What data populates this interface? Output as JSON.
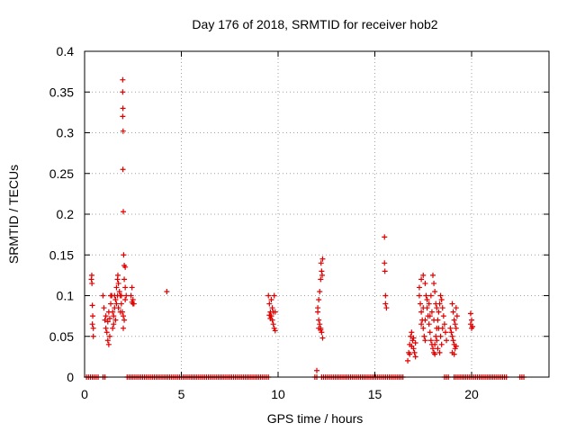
{
  "chart_data": {
    "type": "scatter",
    "title": "Day 176 of 2018, SRMTID for receiver hob2",
    "xlabel": "GPS time / hours",
    "ylabel": "SRMTID / TECUs",
    "xlim": [
      0,
      24
    ],
    "ylim": [
      0,
      0.4
    ],
    "xticks": [
      0,
      5,
      10,
      15,
      20
    ],
    "xtick_labels": [
      "0",
      "5",
      "10",
      "15",
      "20"
    ],
    "yticks": [
      0,
      0.05,
      0.1,
      0.15,
      0.2,
      0.25,
      0.3,
      0.35,
      0.4
    ],
    "ytick_labels": [
      "0",
      "0.05",
      "0.1",
      "0.15",
      "0.2",
      "0.25",
      "0.3",
      "0.35",
      "0.4"
    ],
    "grid": true,
    "marker": "+",
    "color": "#e00000",
    "zero_segments": [
      [
        0.1,
        0.7
      ],
      [
        0.95,
        1.05
      ],
      [
        2.2,
        9.5
      ],
      [
        11.9,
        12.05
      ],
      [
        12.25,
        16.5
      ],
      [
        18.6,
        18.8
      ],
      [
        19.1,
        21.8
      ],
      [
        22.5,
        22.7
      ]
    ],
    "points": [
      [
        0.35,
        0.12
      ],
      [
        0.37,
        0.125
      ],
      [
        0.38,
        0.115
      ],
      [
        0.4,
        0.088
      ],
      [
        0.42,
        0.075
      ],
      [
        0.45,
        0.06
      ],
      [
        0.45,
        0.05
      ],
      [
        0.4,
        0.065
      ],
      [
        0.95,
        0.1
      ],
      [
        1.0,
        0.085
      ],
      [
        1.05,
        0.07
      ],
      [
        1.1,
        0.06
      ],
      [
        1.15,
        0.055
      ],
      [
        1.2,
        0.045
      ],
      [
        1.25,
        0.04
      ],
      [
        1.3,
        0.05
      ],
      [
        1.1,
        0.075
      ],
      [
        1.2,
        0.068
      ],
      [
        1.3,
        0.072
      ],
      [
        1.35,
        0.09
      ],
      [
        1.4,
        0.1
      ],
      [
        1.45,
        0.08
      ],
      [
        1.5,
        0.065
      ],
      [
        1.55,
        0.085
      ],
      [
        1.6,
        0.095
      ],
      [
        1.65,
        0.11
      ],
      [
        1.7,
        0.12
      ],
      [
        1.72,
        0.125
      ],
      [
        1.75,
        0.115
      ],
      [
        1.8,
        0.105
      ],
      [
        1.85,
        0.1
      ],
      [
        1.9,
        0.09
      ],
      [
        1.95,
        0.08
      ],
      [
        2.0,
        0.075
      ],
      [
        2.05,
        0.07
      ],
      [
        2.1,
        0.095
      ],
      [
        2.15,
        0.1
      ],
      [
        1.5,
        0.075
      ],
      [
        1.6,
        0.07
      ],
      [
        1.45,
        0.06
      ],
      [
        1.35,
        0.1
      ],
      [
        1.25,
        0.08
      ],
      [
        1.65,
        0.09
      ],
      [
        1.75,
        0.085
      ],
      [
        1.85,
        0.08
      ],
      [
        1.55,
        0.1
      ],
      [
        1.7,
        0.1
      ],
      [
        1.9,
        0.1
      ],
      [
        1.97,
        0.365
      ],
      [
        1.97,
        0.35
      ],
      [
        1.98,
        0.33
      ],
      [
        1.97,
        0.32
      ],
      [
        1.99,
        0.302
      ],
      [
        1.98,
        0.255
      ],
      [
        2.0,
        0.203
      ],
      [
        2.02,
        0.15
      ],
      [
        2.05,
        0.137
      ],
      [
        2.1,
        0.135
      ],
      [
        2.05,
        0.12
      ],
      [
        2.1,
        0.11
      ],
      [
        2.0,
        0.06
      ],
      [
        2.4,
        0.1
      ],
      [
        2.45,
        0.11
      ],
      [
        2.5,
        0.095
      ],
      [
        2.55,
        0.09
      ],
      [
        2.45,
        0.092
      ],
      [
        2.5,
        0.09
      ],
      [
        4.25,
        0.105
      ],
      [
        9.5,
        0.1
      ],
      [
        9.55,
        0.09
      ],
      [
        9.6,
        0.08
      ],
      [
        9.65,
        0.075
      ],
      [
        9.7,
        0.07
      ],
      [
        9.75,
        0.065
      ],
      [
        9.8,
        0.06
      ],
      [
        9.85,
        0.057
      ],
      [
        9.65,
        0.095
      ],
      [
        9.7,
        0.085
      ],
      [
        9.75,
        0.08
      ],
      [
        9.8,
        0.1
      ],
      [
        9.85,
        0.08
      ],
      [
        9.6,
        0.072
      ],
      [
        9.55,
        0.076
      ],
      [
        12.0,
        0.008
      ],
      [
        12.05,
        0.08
      ],
      [
        12.1,
        0.07
      ],
      [
        12.15,
        0.065
      ],
      [
        12.2,
        0.06
      ],
      [
        12.25,
        0.055
      ],
      [
        12.3,
        0.048
      ],
      [
        12.05,
        0.085
      ],
      [
        12.1,
        0.095
      ],
      [
        12.15,
        0.105
      ],
      [
        12.2,
        0.12
      ],
      [
        12.25,
        0.13
      ],
      [
        12.3,
        0.145
      ],
      [
        12.22,
        0.14
      ],
      [
        12.28,
        0.125
      ],
      [
        12.1,
        0.06
      ],
      [
        12.2,
        0.058
      ],
      [
        15.5,
        0.172
      ],
      [
        15.5,
        0.14
      ],
      [
        15.52,
        0.13
      ],
      [
        15.55,
        0.1
      ],
      [
        15.55,
        0.09
      ],
      [
        15.6,
        0.085
      ],
      [
        16.7,
        0.02
      ],
      [
        16.75,
        0.03
      ],
      [
        16.8,
        0.04
      ],
      [
        16.85,
        0.05
      ],
      [
        16.9,
        0.055
      ],
      [
        16.95,
        0.045
      ],
      [
        17.0,
        0.035
      ],
      [
        17.05,
        0.03
      ],
      [
        17.1,
        0.025
      ],
      [
        16.8,
        0.028
      ],
      [
        16.9,
        0.038
      ],
      [
        17.0,
        0.048
      ],
      [
        17.1,
        0.042
      ],
      [
        17.3,
        0.1
      ],
      [
        17.35,
        0.09
      ],
      [
        17.4,
        0.08
      ],
      [
        17.45,
        0.07
      ],
      [
        17.5,
        0.06
      ],
      [
        17.55,
        0.05
      ],
      [
        17.6,
        0.045
      ],
      [
        17.3,
        0.11
      ],
      [
        17.4,
        0.12
      ],
      [
        17.5,
        0.125
      ],
      [
        17.6,
        0.115
      ],
      [
        17.65,
        0.1
      ],
      [
        17.7,
        0.085
      ],
      [
        17.75,
        0.075
      ],
      [
        17.8,
        0.065
      ],
      [
        17.85,
        0.055
      ],
      [
        17.9,
        0.045
      ],
      [
        17.95,
        0.04
      ],
      [
        18.0,
        0.035
      ],
      [
        18.05,
        0.03
      ],
      [
        18.1,
        0.04
      ],
      [
        18.15,
        0.05
      ],
      [
        18.2,
        0.06
      ],
      [
        18.25,
        0.07
      ],
      [
        18.3,
        0.08
      ],
      [
        18.35,
        0.09
      ],
      [
        18.4,
        0.1
      ],
      [
        18.45,
        0.095
      ],
      [
        18.5,
        0.085
      ],
      [
        18.55,
        0.075
      ],
      [
        18.6,
        0.065
      ],
      [
        18.65,
        0.055
      ],
      [
        18.7,
        0.045
      ],
      [
        18.0,
        0.125
      ],
      [
        18.05,
        0.115
      ],
      [
        18.1,
        0.105
      ],
      [
        18.15,
        0.09
      ],
      [
        17.9,
        0.1
      ],
      [
        17.7,
        0.095
      ],
      [
        17.5,
        0.085
      ],
      [
        17.4,
        0.065
      ],
      [
        17.6,
        0.07
      ],
      [
        18.3,
        0.06
      ],
      [
        18.4,
        0.05
      ],
      [
        18.2,
        0.045
      ],
      [
        18.1,
        0.028
      ],
      [
        18.25,
        0.035
      ],
      [
        18.45,
        0.04
      ],
      [
        18.35,
        0.03
      ],
      [
        17.8,
        0.09
      ],
      [
        17.95,
        0.08
      ],
      [
        18.05,
        0.07
      ],
      [
        17.85,
        0.075
      ],
      [
        18.2,
        0.085
      ],
      [
        18.5,
        0.06
      ],
      [
        19.0,
        0.09
      ],
      [
        19.05,
        0.08
      ],
      [
        19.1,
        0.07
      ],
      [
        19.15,
        0.065
      ],
      [
        19.2,
        0.06
      ],
      [
        19.0,
        0.05
      ],
      [
        19.05,
        0.045
      ],
      [
        19.1,
        0.04
      ],
      [
        19.15,
        0.035
      ],
      [
        19.0,
        0.03
      ],
      [
        19.1,
        0.028
      ],
      [
        19.2,
        0.085
      ],
      [
        19.25,
        0.075
      ],
      [
        18.9,
        0.06
      ],
      [
        18.95,
        0.055
      ],
      [
        19.2,
        0.038
      ],
      [
        19.95,
        0.078
      ],
      [
        20.0,
        0.07
      ],
      [
        20.05,
        0.062
      ],
      [
        20.0,
        0.06
      ],
      [
        19.95,
        0.065
      ]
    ]
  }
}
